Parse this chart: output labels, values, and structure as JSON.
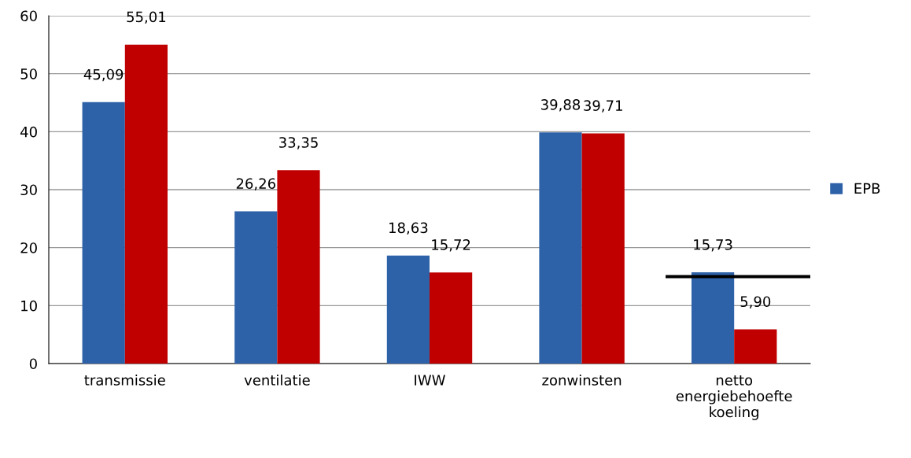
{
  "chart_data": {
    "type": "bar",
    "categories": [
      "transmissie",
      "ventilatie",
      "IWW",
      "zonwinsten",
      "netto energiebehoefte koeling"
    ],
    "series": [
      {
        "name": "EPB",
        "color": "#2e62a8",
        "values": [
          45.09,
          26.26,
          18.63,
          39.88,
          15.73
        ],
        "value_labels": [
          "45,09",
          "26,26",
          "18,63",
          "39,88",
          "15,73"
        ]
      },
      {
        "color": "#c00000",
        "values": [
          55.01,
          33.35,
          15.72,
          39.71,
          5.9
        ],
        "value_labels": [
          "55,01",
          "33,35",
          "15,72",
          "39,71",
          "5,90"
        ]
      }
    ],
    "ylim": [
      0,
      60
    ],
    "yticks": [
      0,
      10,
      20,
      30,
      40,
      50,
      60
    ],
    "grid": "y",
    "legend": "right",
    "ref_lines": [
      {
        "axis": "y",
        "value": 15,
        "color": "#000000"
      }
    ]
  }
}
